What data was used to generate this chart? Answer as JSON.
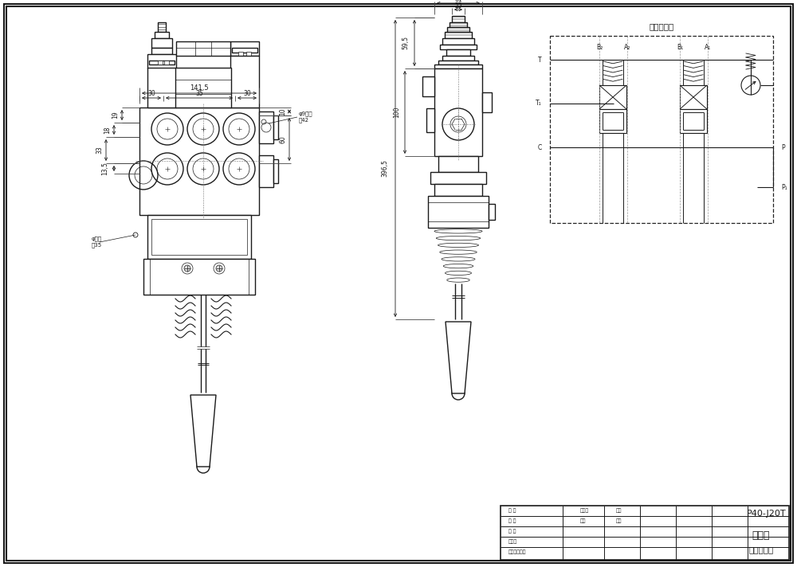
{
  "bg_color": "#ffffff",
  "line_color": "#1a1a1a",
  "title": "P40-J20T",
  "hydraulic_title": "液压原理图",
  "subtitle1": "多路阀",
  "subtitle2": "外型尺寸图"
}
